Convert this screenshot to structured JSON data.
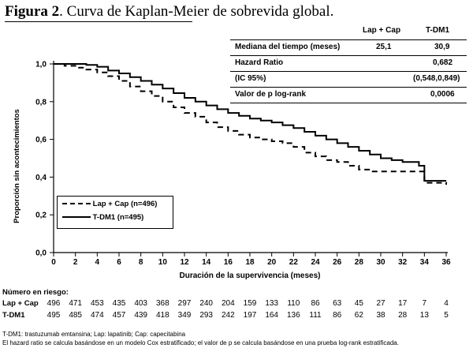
{
  "figure": {
    "title_bold": "Figura 2",
    "title_rest": ". Curva de Kaplan-Meier de sobrevida global."
  },
  "stats_table": {
    "col_headers": [
      "Lap + Cap",
      "T-DM1"
    ],
    "rows": [
      {
        "label": "Mediana del tiempo (meses)",
        "lap_cap": "25,1",
        "tdm1": "30,9"
      },
      {
        "label": "Hazard Ratio",
        "lap_cap": "",
        "tdm1": "0,682"
      },
      {
        "label": "(IC 95%)",
        "lap_cap": "",
        "tdm1": "(0,548,0,849)"
      },
      {
        "label": "Valor de p log-rank",
        "lap_cap": "",
        "tdm1": "0,0006"
      }
    ]
  },
  "legend": {
    "lap_cap": "Lap + Cap (n=496)",
    "tdm1": "T-DM1 (n=495)"
  },
  "risk_table": {
    "heading": "Número en riesgo:",
    "rows": [
      {
        "label": "Lap + Cap",
        "values": [
          496,
          471,
          453,
          435,
          403,
          368,
          297,
          240,
          204,
          159,
          133,
          110,
          86,
          63,
          45,
          27,
          17,
          7,
          4
        ]
      },
      {
        "label": "T-DM1",
        "values": [
          495,
          485,
          474,
          457,
          439,
          418,
          349,
          293,
          242,
          197,
          164,
          136,
          111,
          86,
          62,
          38,
          28,
          13,
          5
        ]
      }
    ]
  },
  "footnotes": [
    "T-DM1: trastuzumab emtansina; Lap: lapatinib; Cap: capecitabina",
    "El hazard ratio se calcula basándose en un modelo Cox estratificado; el valor de p se calcula basándose en una prueba  log-rank estratificada."
  ],
  "chart_data": {
    "type": "line",
    "title": "Curva de Kaplan-Meier de sobrevida global.",
    "xlabel": "Duración de la supervivencia (meses)",
    "ylabel": "Proporción sin acontecimientos",
    "xlim": [
      0,
      36
    ],
    "ylim": [
      0,
      1
    ],
    "x_ticks": [
      0,
      2,
      4,
      6,
      8,
      10,
      12,
      14,
      16,
      18,
      20,
      22,
      24,
      26,
      28,
      30,
      32,
      34,
      36
    ],
    "y_ticks": [
      "0,0",
      "0,2",
      "0,4",
      "0,6",
      "0,8",
      "1,0"
    ],
    "grid": false,
    "legend_position": "bottom-left",
    "series": [
      {
        "name": "Lap + Cap (n=496)",
        "style": "dashed",
        "color": "#000000",
        "x": [
          0,
          1,
          2,
          3,
          4,
          5,
          6,
          7,
          8,
          9,
          10,
          11,
          12,
          13,
          14,
          15,
          16,
          17,
          18,
          19,
          20,
          21,
          22,
          23,
          24,
          25,
          26,
          27,
          28,
          29,
          30,
          31,
          32,
          33,
          33.5,
          34,
          35,
          36
        ],
        "y": [
          1.0,
          0.99,
          0.98,
          0.97,
          0.955,
          0.935,
          0.91,
          0.88,
          0.855,
          0.83,
          0.8,
          0.77,
          0.74,
          0.72,
          0.69,
          0.665,
          0.645,
          0.625,
          0.61,
          0.6,
          0.59,
          0.58,
          0.56,
          0.53,
          0.51,
          0.49,
          0.48,
          0.46,
          0.44,
          0.43,
          0.43,
          0.43,
          0.43,
          0.43,
          0.43,
          0.37,
          0.37,
          0.36
        ]
      },
      {
        "name": "T-DM1 (n=495)",
        "style": "solid",
        "color": "#000000",
        "x": [
          0,
          1,
          2,
          3,
          4,
          5,
          6,
          7,
          8,
          9,
          10,
          11,
          12,
          13,
          14,
          15,
          16,
          17,
          18,
          19,
          20,
          21,
          22,
          23,
          24,
          25,
          26,
          27,
          28,
          29,
          30,
          31,
          32,
          33,
          33.5,
          34,
          35,
          36
        ],
        "y": [
          1.0,
          1.0,
          1.0,
          0.995,
          0.985,
          0.965,
          0.95,
          0.93,
          0.91,
          0.89,
          0.87,
          0.845,
          0.82,
          0.8,
          0.78,
          0.76,
          0.74,
          0.725,
          0.71,
          0.7,
          0.69,
          0.675,
          0.66,
          0.64,
          0.62,
          0.6,
          0.58,
          0.56,
          0.54,
          0.52,
          0.5,
          0.49,
          0.48,
          0.48,
          0.46,
          0.38,
          0.38,
          0.38
        ]
      }
    ]
  }
}
